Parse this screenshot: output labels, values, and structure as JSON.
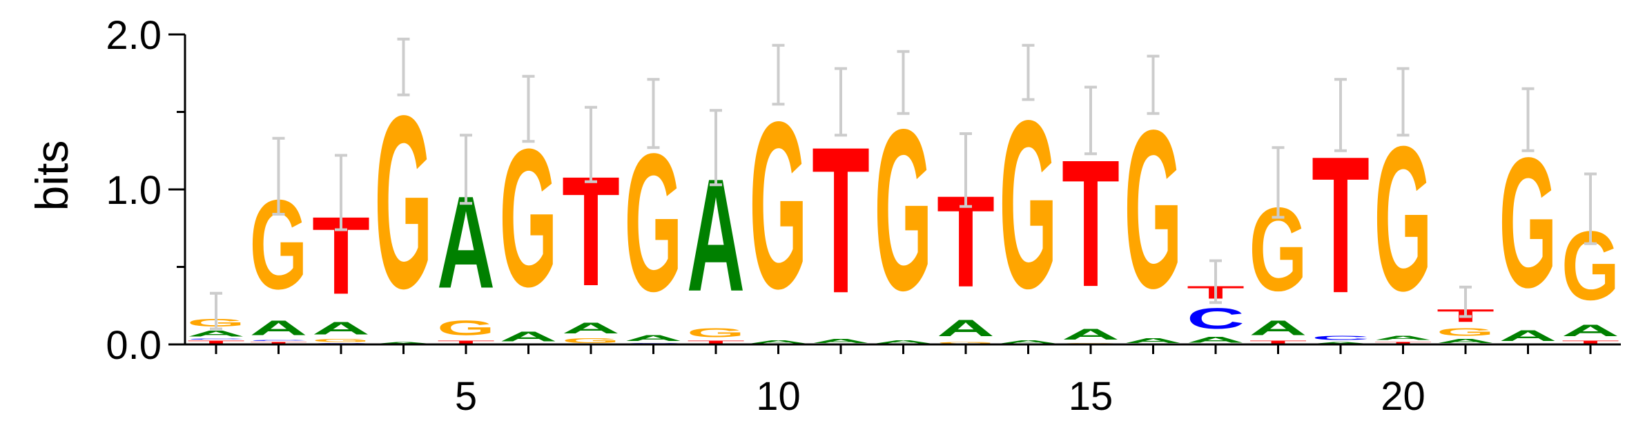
{
  "chart_data": {
    "type": "sequence-logo",
    "ylabel": "bits",
    "ylim": [
      0,
      2
    ],
    "y_ticks": [
      "0.0",
      "1.0",
      "2.0"
    ],
    "x_ticks": [
      "5",
      "10",
      "15",
      "20"
    ],
    "colors": {
      "A": "#008000",
      "C": "#0000ff",
      "G": "#ffa500",
      "T": "#ff0000"
    },
    "error_bar_color": "#cccccc",
    "positions": [
      {
        "pos": 1,
        "stack": [
          [
            "T",
            0.03
          ],
          [
            "C",
            0.01
          ],
          [
            "A",
            0.06
          ],
          [
            "G",
            0.08
          ]
        ],
        "err": [
          0.1,
          0.33
        ]
      },
      {
        "pos": 2,
        "stack": [
          [
            "T",
            0.02
          ],
          [
            "C",
            0.01
          ],
          [
            "A",
            0.15
          ],
          [
            "G",
            0.92
          ]
        ],
        "err": [
          0.84,
          1.33
        ]
      },
      {
        "pos": 3,
        "stack": [
          [
            "C",
            0.01
          ],
          [
            "G",
            0.03
          ],
          [
            "A",
            0.13
          ],
          [
            "T",
            0.8
          ]
        ],
        "err": [
          0.74,
          1.22
        ]
      },
      {
        "pos": 4,
        "stack": [
          [
            "A",
            0.02
          ],
          [
            "G",
            1.78
          ]
        ],
        "err": [
          1.61,
          1.97
        ]
      },
      {
        "pos": 5,
        "stack": [
          [
            "T",
            0.03
          ],
          [
            "G",
            0.15
          ],
          [
            "A",
            0.95
          ]
        ],
        "err": [
          0.91,
          1.35
        ]
      },
      {
        "pos": 6,
        "stack": [
          [
            "A",
            0.1
          ],
          [
            "G",
            1.42
          ]
        ],
        "err": [
          1.31,
          1.73
        ]
      },
      {
        "pos": 7,
        "stack": [
          [
            "G",
            0.05
          ],
          [
            "A",
            0.11
          ],
          [
            "T",
            1.13
          ]
        ],
        "err": [
          1.05,
          1.53
        ]
      },
      {
        "pos": 8,
        "stack": [
          [
            "C",
            0.01
          ],
          [
            "A",
            0.06
          ],
          [
            "G",
            1.42
          ]
        ],
        "err": [
          1.27,
          1.71
        ]
      },
      {
        "pos": 9,
        "stack": [
          [
            "T",
            0.03
          ],
          [
            "G",
            0.09
          ],
          [
            "A",
            1.16
          ]
        ],
        "err": [
          1.03,
          1.51
        ]
      },
      {
        "pos": 10,
        "stack": [
          [
            "A",
            0.03
          ],
          [
            "G",
            1.72
          ]
        ],
        "err": [
          1.55,
          1.93
        ]
      },
      {
        "pos": 11,
        "stack": [
          [
            "A",
            0.04
          ],
          [
            "T",
            1.51
          ]
        ],
        "err": [
          1.35,
          1.78
        ]
      },
      {
        "pos": 12,
        "stack": [
          [
            "A",
            0.03
          ],
          [
            "G",
            1.66
          ]
        ],
        "err": [
          1.49,
          1.89
        ]
      },
      {
        "pos": 13,
        "stack": [
          [
            "G",
            0.02
          ],
          [
            "A",
            0.17
          ],
          [
            "T",
            0.94
          ]
        ],
        "err": [
          0.89,
          1.36
        ]
      },
      {
        "pos": 14,
        "stack": [
          [
            "A",
            0.03
          ],
          [
            "G",
            1.73
          ]
        ],
        "err": [
          1.58,
          1.93
        ]
      },
      {
        "pos": 15,
        "stack": [
          [
            "G",
            0.01
          ],
          [
            "A",
            0.11
          ],
          [
            "T",
            1.31
          ]
        ],
        "err": [
          1.23,
          1.66
        ]
      },
      {
        "pos": 16,
        "stack": [
          [
            "A",
            0.05
          ],
          [
            "G",
            1.63
          ]
        ],
        "err": [
          1.49,
          1.86
        ]
      },
      {
        "pos": 17,
        "stack": [
          [
            "A",
            0.06
          ],
          [
            "C",
            0.21
          ],
          [
            "T",
            0.13
          ]
        ],
        "err": [
          0.27,
          0.54
        ]
      },
      {
        "pos": 18,
        "stack": [
          [
            "T",
            0.03
          ],
          [
            "A",
            0.15
          ],
          [
            "G",
            0.86
          ]
        ],
        "err": [
          0.82,
          1.27
        ]
      },
      {
        "pos": 19,
        "stack": [
          [
            "A",
            0.02
          ],
          [
            "C",
            0.04
          ],
          [
            "T",
            1.41
          ]
        ],
        "err": [
          1.25,
          1.71
        ]
      },
      {
        "pos": 20,
        "stack": [
          [
            "T",
            0.02
          ],
          [
            "A",
            0.04
          ],
          [
            "G",
            1.49
          ]
        ],
        "err": [
          1.35,
          1.78
        ]
      },
      {
        "pos": 21,
        "stack": [
          [
            "A",
            0.04
          ],
          [
            "G",
            0.08
          ],
          [
            "T",
            0.13
          ]
        ],
        "err": [
          0.18,
          0.37
        ]
      },
      {
        "pos": 22,
        "stack": [
          [
            "A",
            0.11
          ],
          [
            "G",
            1.34
          ]
        ],
        "err": [
          1.25,
          1.65
        ]
      },
      {
        "pos": 23,
        "stack": [
          [
            "T",
            0.03
          ],
          [
            "A",
            0.12
          ],
          [
            "G",
            0.71
          ]
        ],
        "err": [
          0.65,
          1.1
        ]
      }
    ]
  }
}
